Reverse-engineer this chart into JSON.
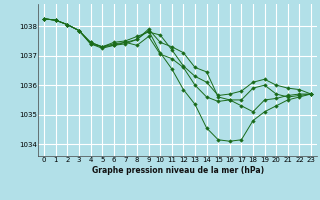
{
  "title": "Graphe pression niveau de la mer (hPa)",
  "bg_color": "#b2e0e8",
  "grid_color": "#ffffff",
  "line_color": "#1a6b1a",
  "marker_color": "#1a6b1a",
  "ylim": [
    1033.6,
    1038.75
  ],
  "yticks": [
    1034,
    1035,
    1036,
    1037,
    1038
  ],
  "xlim": [
    -0.5,
    23.5
  ],
  "xticks": [
    0,
    1,
    2,
    3,
    4,
    5,
    6,
    7,
    8,
    9,
    10,
    11,
    12,
    13,
    14,
    15,
    16,
    17,
    18,
    19,
    20,
    21,
    22,
    23
  ],
  "series": [
    [
      1038.25,
      1038.2,
      1038.05,
      1037.85,
      1037.45,
      1037.3,
      1037.35,
      1037.45,
      1037.55,
      1037.9,
      1037.45,
      1037.3,
      1037.1,
      1036.6,
      1036.45,
      1035.6,
      1035.5,
      1035.3,
      1035.1,
      1035.5,
      1035.55,
      1035.65,
      1035.7,
      1035.7
    ],
    [
      1038.25,
      1038.2,
      1038.05,
      1037.85,
      1037.45,
      1037.3,
      1037.45,
      1037.5,
      1037.65,
      1037.8,
      1037.7,
      1037.2,
      1036.65,
      1036.3,
      1036.1,
      1035.65,
      1035.7,
      1035.8,
      1036.1,
      1036.2,
      1036.0,
      1035.9,
      1035.85,
      1035.7
    ],
    [
      1038.25,
      1038.2,
      1038.05,
      1037.85,
      1037.4,
      1037.3,
      1037.4,
      1037.45,
      1037.35,
      1037.65,
      1037.05,
      1036.9,
      1036.6,
      1036.0,
      1035.6,
      1035.45,
      1035.5,
      1035.5,
      1035.9,
      1036.0,
      1035.7,
      1035.6,
      1035.65,
      1035.7
    ],
    [
      1038.25,
      1038.2,
      1038.05,
      1037.85,
      1037.4,
      1037.25,
      1037.35,
      1037.4,
      1037.55,
      1037.85,
      1037.1,
      1036.55,
      1035.85,
      1035.35,
      1034.55,
      1034.15,
      1034.1,
      1034.15,
      1034.8,
      1035.1,
      1035.3,
      1035.5,
      1035.6,
      1035.7
    ]
  ]
}
